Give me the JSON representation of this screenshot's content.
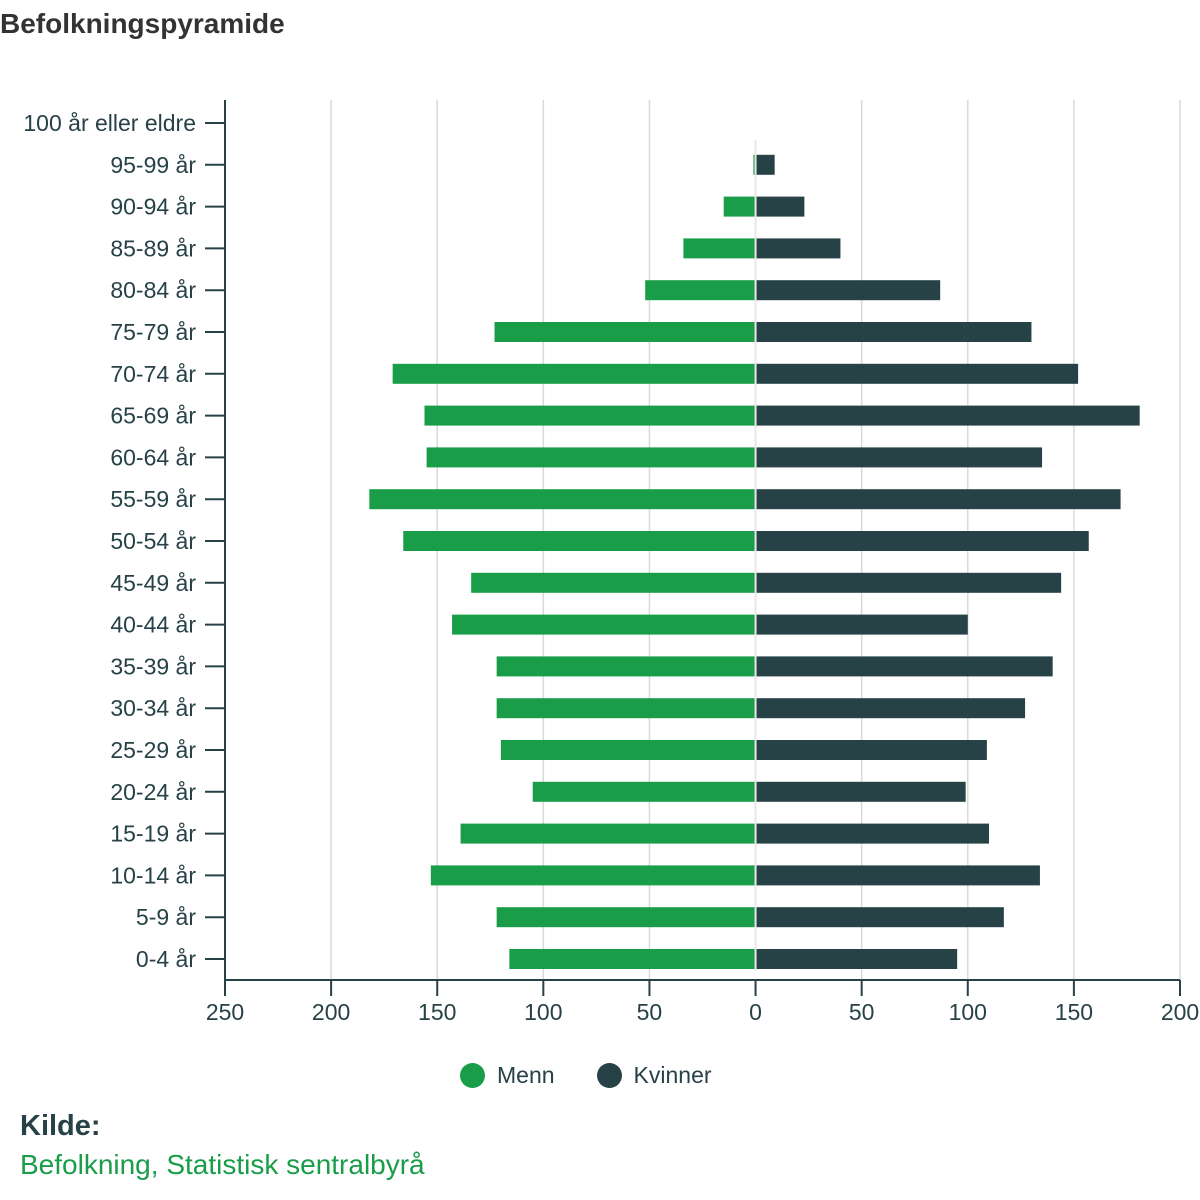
{
  "title": "Befolkningspyramide",
  "legend": {
    "men": "Menn",
    "women": "Kvinner"
  },
  "source": {
    "label": "Kilde:",
    "text": "Befolkning, Statistisk sentralbyrå"
  },
  "colors": {
    "men": "#1a9d49",
    "women": "#274247",
    "grid": "#d9d9d9",
    "axis": "#274247"
  },
  "chart_data": {
    "type": "bar",
    "orientation": "horizontal",
    "style": "population-pyramid",
    "title": "Befolkningspyramide",
    "categories": [
      "100 år eller eldre",
      "95-99 år",
      "90-94 år",
      "85-89 år",
      "80-84 år",
      "75-79 år",
      "70-74 år",
      "65-69 år",
      "60-64 år",
      "55-59 år",
      "50-54 år",
      "45-49 år",
      "40-44 år",
      "35-39 år",
      "30-34 år",
      "25-29 år",
      "20-24 år",
      "15-19 år",
      "10-14 år",
      "5-9 år",
      "0-4 år"
    ],
    "series": [
      {
        "name": "Menn",
        "color": "#1a9d49",
        "values": [
          0,
          1,
          15,
          34,
          52,
          123,
          171,
          156,
          155,
          182,
          166,
          134,
          143,
          122,
          122,
          120,
          105,
          139,
          153,
          122,
          116
        ]
      },
      {
        "name": "Kvinner",
        "color": "#274247",
        "values": [
          0,
          9,
          23,
          40,
          87,
          130,
          152,
          181,
          135,
          172,
          157,
          144,
          100,
          140,
          127,
          109,
          99,
          110,
          134,
          117,
          95
        ]
      }
    ],
    "xlim": [
      -250,
      200
    ],
    "x_ticks": [
      -250,
      -200,
      -150,
      -100,
      -50,
      0,
      50,
      100,
      150,
      200
    ],
    "x_tick_labels": [
      "250",
      "200",
      "150",
      "100",
      "50",
      "0",
      "50",
      "100",
      "150",
      "200"
    ],
    "grid": true,
    "legend_position": "bottom"
  }
}
